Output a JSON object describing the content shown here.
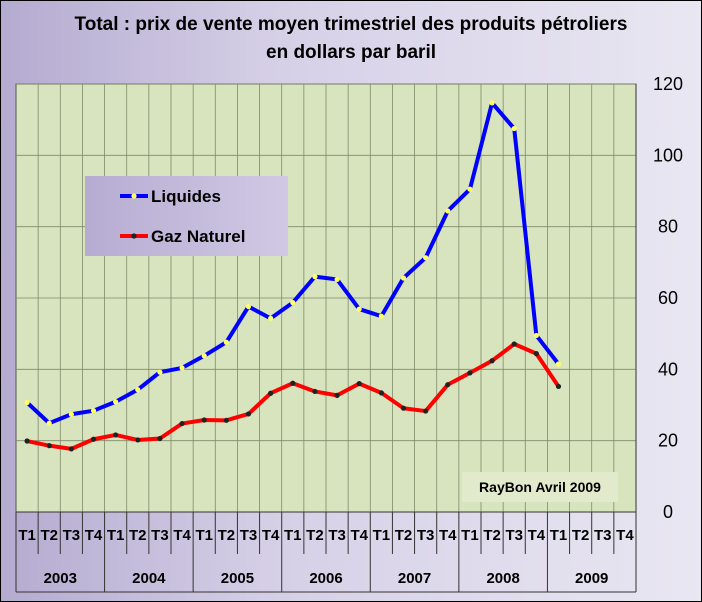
{
  "chart_data": {
    "type": "line",
    "title_line1": "Total : prix de vente moyen trimestriel des produits pétroliers",
    "title_line2": "en dollars par baril",
    "ylim": [
      0,
      120
    ],
    "yticks": [
      "0",
      "20",
      "40",
      "60",
      "80",
      "100",
      "120"
    ],
    "grid": true,
    "quarters": [
      "T1",
      "T2",
      "T3",
      "T4",
      "T1",
      "T2",
      "T3",
      "T4",
      "T1",
      "T2",
      "T3",
      "T4",
      "T1",
      "T2",
      "T3",
      "T4",
      "T1",
      "T2",
      "T3",
      "T4",
      "T1",
      "T2",
      "T3",
      "T4",
      "T1",
      "T2",
      "T3",
      "T4"
    ],
    "years": [
      "2003",
      "2004",
      "2005",
      "2006",
      "2007",
      "2008",
      "2009"
    ],
    "legend_position": "upper-left",
    "series": [
      {
        "name": "Liquides",
        "color": "#0000ff",
        "marker_color": "#ffff66",
        "values": [
          30.7,
          24.9,
          27.4,
          28.4,
          30.9,
          34.3,
          39.2,
          40.4,
          43.8,
          47.6,
          57.6,
          54.3,
          58.7,
          66.0,
          65.2,
          56.9,
          54.9,
          65.6,
          71.3,
          84.4,
          90.5,
          114.7,
          107.5,
          49.5,
          41.5,
          null,
          null,
          null
        ]
      },
      {
        "name": "Gaz Naturel",
        "color": "#ff0000",
        "marker_color": "#222222",
        "values": [
          19.9,
          18.6,
          17.7,
          20.4,
          21.6,
          20.2,
          20.6,
          24.8,
          25.8,
          25.7,
          27.5,
          33.3,
          36.1,
          33.8,
          32.7,
          36.0,
          33.4,
          29.1,
          28.3,
          35.7,
          39.0,
          42.4,
          47.1,
          44.4,
          35.2,
          null,
          null,
          null
        ]
      }
    ],
    "credit": "RayBon Avril 2009"
  }
}
